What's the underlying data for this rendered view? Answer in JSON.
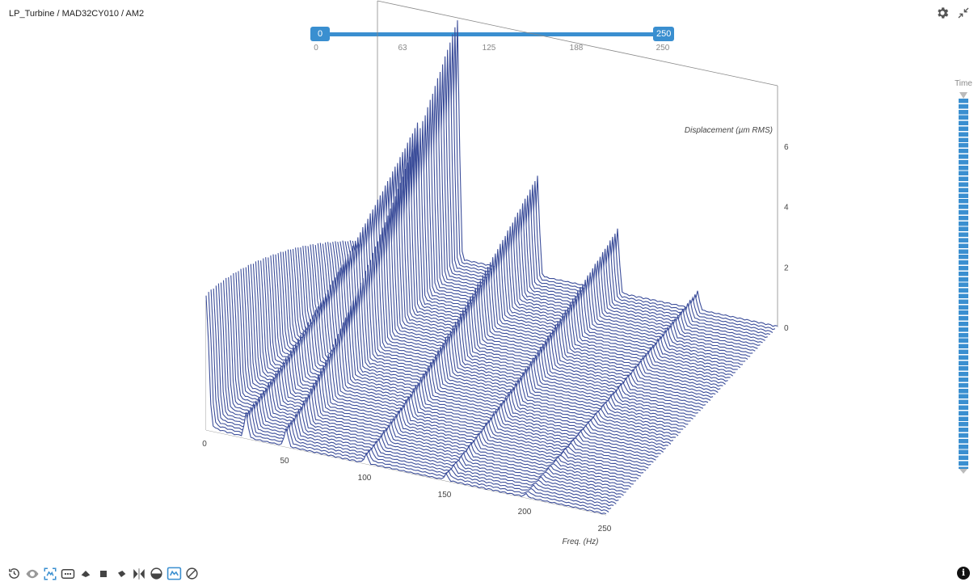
{
  "header": {
    "breadcrumb": "LP_Turbine / MAD32CY010 / AM2"
  },
  "toolbar_top": {
    "icons": [
      "gear-icon",
      "collapse-icon"
    ]
  },
  "range_slider": {
    "min_label": "0",
    "max_label": "250",
    "ticks": [
      "0",
      "63",
      "125",
      "188",
      "250"
    ],
    "min": 0,
    "max": 250
  },
  "time_slider": {
    "label": "Time"
  },
  "bottom_toolbar": {
    "icons": [
      "history-icon",
      "eye-icon",
      "fit-view-icon",
      "more-icon",
      "front-view-icon",
      "side-view-icon",
      "top-view-icon",
      "mirror-icon",
      "half-circle-icon",
      "frame-icon",
      "disable-icon"
    ]
  },
  "info_label": "i",
  "colors": {
    "line": "#3b4d9a",
    "accent": "#3a8fd0",
    "axis": "#888888"
  },
  "chart_data": {
    "type": "waterfall",
    "title": "",
    "xlabel": "Freq. (Hz)",
    "zlabel": "Displacement (µm RMS)",
    "x_ticks": [
      0,
      50,
      100,
      150,
      200,
      250
    ],
    "z_ticks": [
      0,
      2,
      4,
      6
    ],
    "xlim": [
      0,
      250
    ],
    "zlim": [
      0,
      8
    ],
    "num_traces": 70,
    "peaks": [
      {
        "freq": 0,
        "amp_front": 4.3,
        "amp_back": 0.0
      },
      {
        "freq": 25,
        "amp_front": 0.8,
        "amp_back": 4.2
      },
      {
        "freq": 50,
        "amp_front": 0.6,
        "amp_back": 7.9
      },
      {
        "freq": 100,
        "amp_front": 0.3,
        "amp_back": 3.3
      },
      {
        "freq": 150,
        "amp_front": 0.2,
        "amp_back": 2.1
      },
      {
        "freq": 200,
        "amp_front": 0.1,
        "amp_back": 0.6
      }
    ]
  }
}
